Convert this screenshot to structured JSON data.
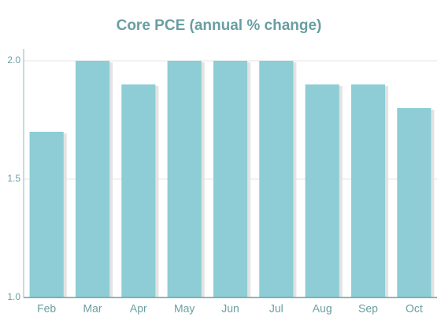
{
  "chart_data": {
    "type": "bar",
    "title": "Core PCE (annual % change)",
    "categories": [
      "Feb",
      "Mar",
      "Apr",
      "May",
      "Jun",
      "Jul",
      "Aug",
      "Sep",
      "Oct"
    ],
    "values": [
      1.7,
      2.0,
      1.9,
      2.0,
      2.0,
      2.0,
      1.9,
      1.9,
      1.8
    ],
    "color": "#8ecdd5",
    "ylim": [
      1,
      2.05
    ],
    "yticks": [
      {
        "value": 1,
        "label": "1.0"
      },
      1.5,
      {
        "value": 2,
        "label": "2.0"
      }
    ],
    "grid": true
  }
}
